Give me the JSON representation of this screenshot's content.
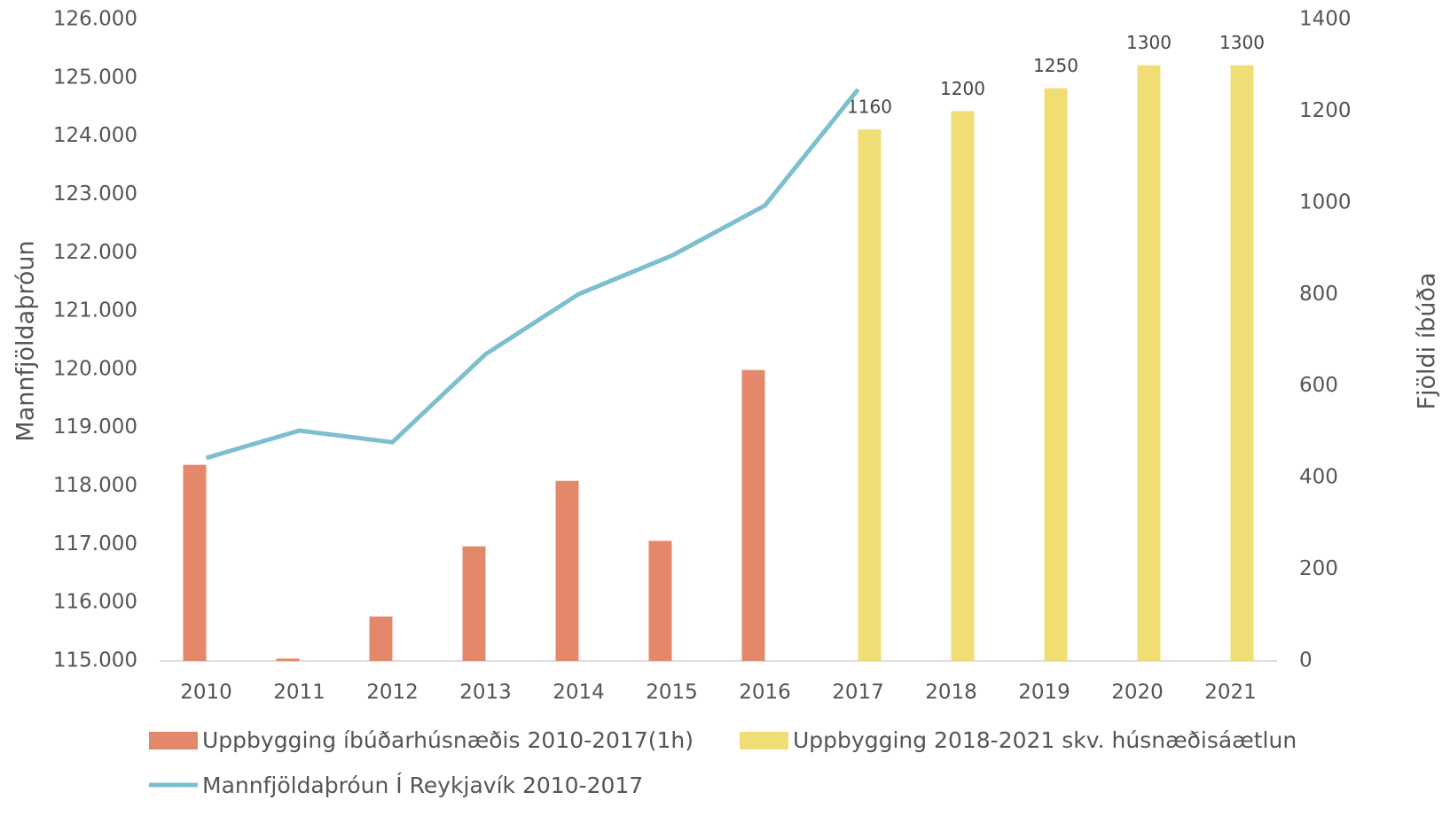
{
  "chart_data": {
    "type": "bar",
    "categories": [
      "2010",
      "2011",
      "2012",
      "2013",
      "2014",
      "2015",
      "2016",
      "2017",
      "2018",
      "2019",
      "2020",
      "2021"
    ],
    "y_label": "Mannfjöldaþróun",
    "y2_label": "Fjöldi íbúða",
    "ylim": [
      115000,
      126000
    ],
    "yticks": [
      {
        "value": 115000,
        "label": "115.000"
      },
      {
        "value": 116000,
        "label": "116.000"
      },
      {
        "value": 117000,
        "label": "117.000"
      },
      {
        "value": 118000,
        "label": "118.000"
      },
      {
        "value": 119000,
        "label": "119.000"
      },
      {
        "value": 120000,
        "label": "120.000"
      },
      {
        "value": 121000,
        "label": "121.000"
      },
      {
        "value": 122000,
        "label": "122.000"
      },
      {
        "value": 123000,
        "label": "123.000"
      },
      {
        "value": 124000,
        "label": "124.000"
      },
      {
        "value": 125000,
        "label": "125.000"
      },
      {
        "value": 126000,
        "label": "126.000"
      }
    ],
    "y2lim": [
      0,
      1400
    ],
    "y2ticks": [
      0,
      200,
      400,
      600,
      800,
      1000,
      1200,
      1400
    ],
    "series": [
      {
        "name": "Uppbygging íbúðarhúsnæðis 2010-2017(1h)",
        "type": "bar",
        "axis": "y2",
        "color": "#e3886a",
        "values": [
          428,
          5,
          97,
          250,
          393,
          262,
          635,
          null,
          null,
          null,
          null,
          null
        ]
      },
      {
        "name": "Uppbygging 2018-2021 skv. húsnæðisáætlun",
        "type": "bar",
        "axis": "y2",
        "color": "#f0de74",
        "values": [
          null,
          null,
          null,
          null,
          null,
          null,
          null,
          1160,
          1200,
          1250,
          1300,
          1300
        ],
        "data_labels": true
      },
      {
        "name": "Mannfjöldaþróun Í Reykjavík 2010-2017",
        "type": "line",
        "color": "#7dbfcf",
        "values": [
          118480,
          118950,
          118750,
          120260,
          121290,
          121950,
          122810,
          124800,
          null,
          null,
          null,
          null
        ]
      }
    ]
  }
}
